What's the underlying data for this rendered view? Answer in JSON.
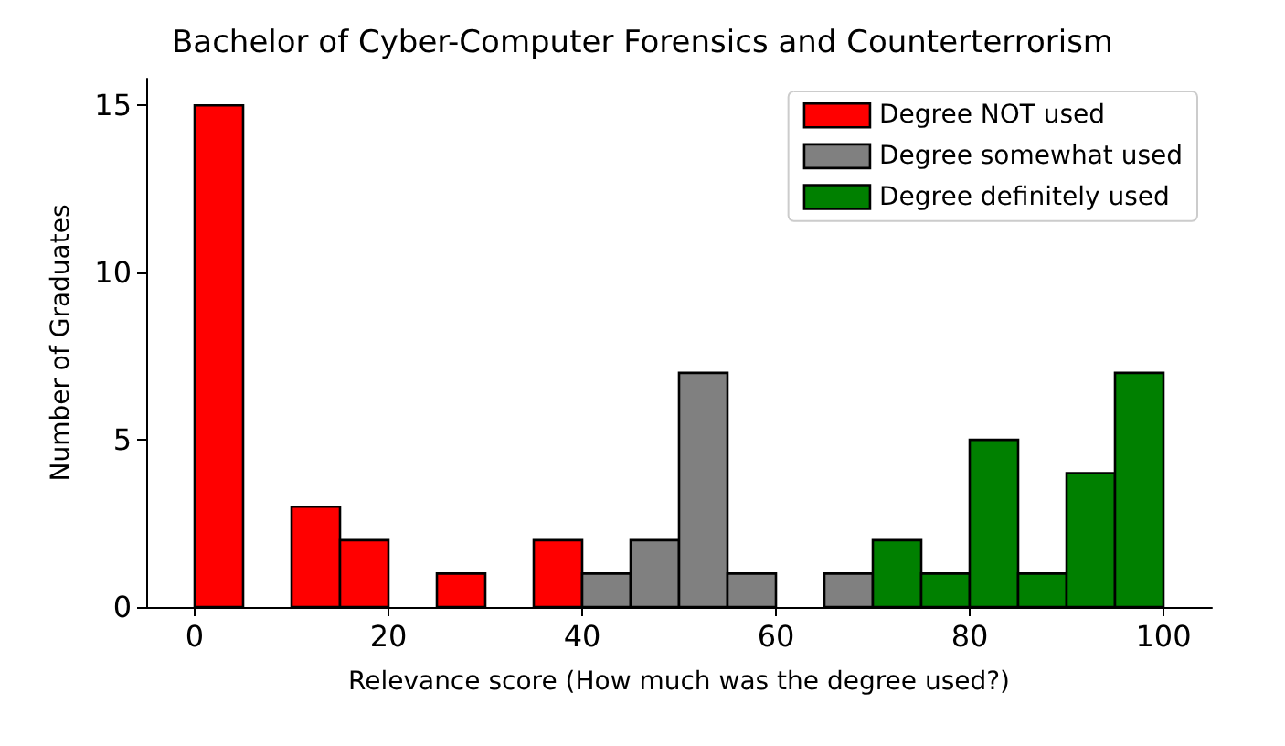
{
  "chart_data": {
    "type": "histogram",
    "title": "Bachelor of Cyber-Computer Forensics and Counterterrorism",
    "xlabel": "Relevance score (How much was the degree used?)",
    "ylabel": "Number of Graduates",
    "bins": [
      0,
      5,
      10,
      15,
      20,
      25,
      30,
      35,
      40,
      45,
      50,
      55,
      60,
      65,
      70,
      75,
      80,
      85,
      90,
      95,
      100
    ],
    "series": [
      {
        "name": "Degree NOT used",
        "color": "#ff0000",
        "values": [
          15,
          0,
          3,
          2,
          0,
          1,
          0,
          2,
          null,
          null,
          null,
          null,
          null,
          null,
          null,
          null,
          null,
          null,
          null,
          null
        ]
      },
      {
        "name": "Degree somewhat used",
        "color": "#808080",
        "values": [
          null,
          null,
          null,
          null,
          null,
          null,
          null,
          null,
          1,
          2,
          7,
          1,
          0,
          1,
          null,
          null,
          null,
          null,
          null,
          null
        ]
      },
      {
        "name": "Degree definitely used",
        "color": "#008000",
        "values": [
          null,
          null,
          null,
          null,
          null,
          null,
          null,
          null,
          null,
          null,
          null,
          null,
          null,
          null,
          2,
          1,
          5,
          1,
          4,
          7
        ]
      }
    ],
    "xlim": [
      -5,
      105
    ],
    "xticks": [
      0,
      20,
      40,
      60,
      80,
      100
    ],
    "ylim": [
      0,
      15.8
    ],
    "yticks": [
      0,
      5,
      10,
      15
    ],
    "grid": false,
    "legend": "top right"
  }
}
